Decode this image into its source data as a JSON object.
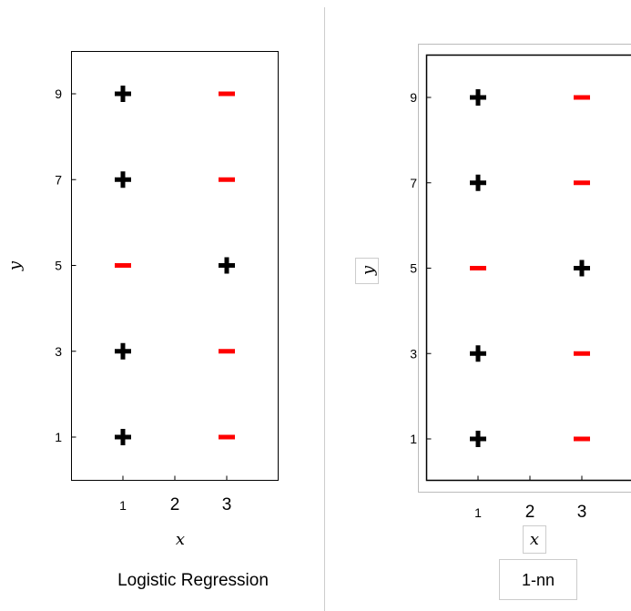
{
  "chart_data": [
    {
      "type": "scatter",
      "caption": "Logistic Regression",
      "xlabel": "x",
      "ylabel": "y",
      "xticks": [
        "1",
        "2",
        "3"
      ],
      "yticks": [
        "1",
        "3",
        "5",
        "7",
        "9"
      ],
      "xlim": [
        0,
        4
      ],
      "ylim": [
        0,
        10
      ],
      "grid": false,
      "series": [
        {
          "marker": "plus",
          "color": "#000000",
          "points": [
            [
              1,
              9
            ],
            [
              1,
              7
            ],
            [
              1,
              3
            ],
            [
              1,
              1
            ],
            [
              3,
              5
            ]
          ]
        },
        {
          "marker": "minus",
          "color": "#ff0000",
          "points": [
            [
              3,
              9
            ],
            [
              3,
              7
            ],
            [
              1,
              5
            ],
            [
              3,
              3
            ],
            [
              3,
              1
            ]
          ]
        }
      ]
    },
    {
      "type": "scatter",
      "caption": "1-nn",
      "xlabel": "x",
      "ylabel": "y",
      "xticks": [
        "1",
        "2",
        "3"
      ],
      "yticks": [
        "1",
        "3",
        "5",
        "7",
        "9"
      ],
      "xlim": [
        0,
        4
      ],
      "ylim": [
        0,
        10
      ],
      "grid": false,
      "series": [
        {
          "marker": "plus",
          "color": "#000000",
          "points": [
            [
              1,
              9
            ],
            [
              1,
              7
            ],
            [
              1,
              3
            ],
            [
              1,
              1
            ],
            [
              3,
              5
            ]
          ]
        },
        {
          "marker": "minus",
          "color": "#ff0000",
          "points": [
            [
              3,
              9
            ],
            [
              3,
              7
            ],
            [
              1,
              5
            ],
            [
              3,
              3
            ],
            [
              3,
              1
            ]
          ]
        }
      ]
    }
  ]
}
